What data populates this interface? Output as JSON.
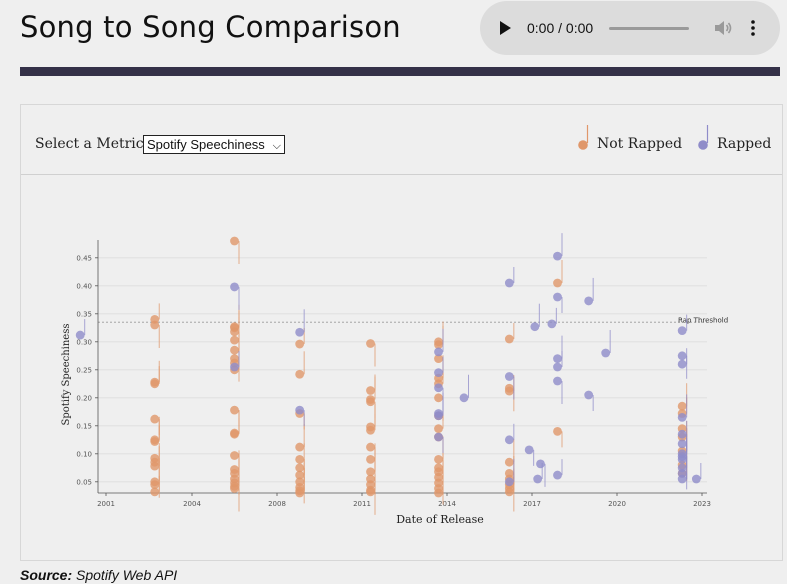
{
  "page": {
    "title": "Song to Song Comparison",
    "source_label": "Source:",
    "source_text": "Spotify Web API"
  },
  "audio_player": {
    "time": "0:00 / 0:00",
    "icons": [
      "play-icon",
      "volume-icon",
      "more-vertical-icon"
    ]
  },
  "controls": {
    "metric_label": "Select a Metric",
    "metric_selected": "Spotify Speechiness"
  },
  "legend": [
    {
      "label": "Not Rapped",
      "color": "#e0976a"
    },
    {
      "label": "Rapped",
      "color": "#8f8cc9"
    }
  ],
  "chart_data": {
    "type": "scatter",
    "xlabel": "Date of Release",
    "ylabel": "Spotify Speechiness",
    "x_ticks": [
      "2001",
      "2004",
      "2008",
      "2011",
      "2014",
      "2017",
      "2020",
      "2023"
    ],
    "y_ticks": [
      "0.05",
      "0.10",
      "0.15",
      "0.20",
      "0.25",
      "0.30",
      "0.35",
      "0.40",
      "0.45"
    ],
    "ylim": [
      0.03,
      0.47
    ],
    "grid": true,
    "threshold": {
      "label": "Rap Threshold",
      "value": 0.335
    },
    "series": [
      {
        "name": "Not Rapped",
        "color": "#e0976a",
        "points": [
          [
            2002.7,
            0.34
          ],
          [
            2002.7,
            0.33
          ],
          [
            2002.7,
            0.228
          ],
          [
            2002.7,
            0.225
          ],
          [
            2002.7,
            0.162
          ],
          [
            2002.7,
            0.125
          ],
          [
            2002.7,
            0.122
          ],
          [
            2002.7,
            0.092
          ],
          [
            2002.7,
            0.085
          ],
          [
            2002.7,
            0.078
          ],
          [
            2002.7,
            0.05
          ],
          [
            2002.7,
            0.045
          ],
          [
            2002.7,
            0.032
          ],
          [
            2006.0,
            0.48
          ],
          [
            2006.0,
            0.327
          ],
          [
            2006.0,
            0.325
          ],
          [
            2006.0,
            0.318
          ],
          [
            2006.0,
            0.303
          ],
          [
            2006.0,
            0.285
          ],
          [
            2006.0,
            0.27
          ],
          [
            2006.0,
            0.262
          ],
          [
            2006.0,
            0.25
          ],
          [
            2006.0,
            0.178
          ],
          [
            2006.0,
            0.137
          ],
          [
            2006.0,
            0.135
          ],
          [
            2006.0,
            0.097
          ],
          [
            2006.0,
            0.072
          ],
          [
            2006.0,
            0.065
          ],
          [
            2006.0,
            0.055
          ],
          [
            2006.0,
            0.048
          ],
          [
            2006.0,
            0.042
          ],
          [
            2006.0,
            0.038
          ],
          [
            2008.8,
            0.296
          ],
          [
            2008.8,
            0.242
          ],
          [
            2008.8,
            0.172
          ],
          [
            2008.8,
            0.112
          ],
          [
            2008.8,
            0.09
          ],
          [
            2008.8,
            0.075
          ],
          [
            2008.8,
            0.062
          ],
          [
            2008.8,
            0.05
          ],
          [
            2008.8,
            0.04
          ],
          [
            2008.8,
            0.034
          ],
          [
            2008.8,
            0.03
          ],
          [
            2011.3,
            0.297
          ],
          [
            2011.3,
            0.213
          ],
          [
            2011.3,
            0.197
          ],
          [
            2011.3,
            0.193
          ],
          [
            2011.3,
            0.148
          ],
          [
            2011.3,
            0.142
          ],
          [
            2011.3,
            0.112
          ],
          [
            2011.3,
            0.09
          ],
          [
            2011.3,
            0.068
          ],
          [
            2011.3,
            0.055
          ],
          [
            2011.3,
            0.045
          ],
          [
            2011.3,
            0.035
          ],
          [
            2011.3,
            0.032
          ],
          [
            2013.7,
            0.3
          ],
          [
            2013.7,
            0.295
          ],
          [
            2013.7,
            0.27
          ],
          [
            2013.7,
            0.235
          ],
          [
            2013.7,
            0.225
          ],
          [
            2013.7,
            0.2
          ],
          [
            2013.7,
            0.168
          ],
          [
            2013.7,
            0.145
          ],
          [
            2013.7,
            0.13
          ],
          [
            2013.7,
            0.09
          ],
          [
            2013.7,
            0.075
          ],
          [
            2013.7,
            0.068
          ],
          [
            2013.7,
            0.058
          ],
          [
            2013.7,
            0.048
          ],
          [
            2013.7,
            0.038
          ],
          [
            2013.7,
            0.03
          ],
          [
            2016.2,
            0.305
          ],
          [
            2016.2,
            0.217
          ],
          [
            2016.2,
            0.212
          ],
          [
            2016.2,
            0.085
          ],
          [
            2016.2,
            0.065
          ],
          [
            2016.2,
            0.055
          ],
          [
            2016.2,
            0.045
          ],
          [
            2016.2,
            0.038
          ],
          [
            2016.2,
            0.032
          ],
          [
            2017.9,
            0.405
          ],
          [
            2017.9,
            0.14
          ],
          [
            2022.3,
            0.185
          ],
          [
            2022.3,
            0.172
          ],
          [
            2022.3,
            0.145
          ],
          [
            2022.3,
            0.13
          ],
          [
            2022.3,
            0.105
          ],
          [
            2022.3,
            0.08
          ],
          [
            2022.3,
            0.065
          ]
        ]
      },
      {
        "name": "Rapped",
        "color": "#8f8cc9",
        "points": [
          [
            2000.1,
            0.312
          ],
          [
            2006.0,
            0.398
          ],
          [
            2006.0,
            0.255
          ],
          [
            2008.8,
            0.317
          ],
          [
            2008.8,
            0.178
          ],
          [
            2013.7,
            0.282
          ],
          [
            2013.7,
            0.245
          ],
          [
            2013.7,
            0.218
          ],
          [
            2013.7,
            0.172
          ],
          [
            2013.7,
            0.168
          ],
          [
            2013.7,
            0.13
          ],
          [
            2014.6,
            0.2
          ],
          [
            2016.2,
            0.405
          ],
          [
            2016.2,
            0.238
          ],
          [
            2016.2,
            0.125
          ],
          [
            2016.2,
            0.05
          ],
          [
            2016.9,
            0.107
          ],
          [
            2017.1,
            0.327
          ],
          [
            2017.2,
            0.055
          ],
          [
            2017.3,
            0.082
          ],
          [
            2017.7,
            0.332
          ],
          [
            2017.9,
            0.453
          ],
          [
            2017.9,
            0.38
          ],
          [
            2017.9,
            0.27
          ],
          [
            2017.9,
            0.255
          ],
          [
            2017.9,
            0.23
          ],
          [
            2017.9,
            0.062
          ],
          [
            2019.0,
            0.373
          ],
          [
            2019.0,
            0.205
          ],
          [
            2019.6,
            0.28
          ],
          [
            2022.3,
            0.32
          ],
          [
            2022.3,
            0.275
          ],
          [
            2022.3,
            0.26
          ],
          [
            2022.3,
            0.165
          ],
          [
            2022.3,
            0.135
          ],
          [
            2022.3,
            0.118
          ],
          [
            2022.3,
            0.1
          ],
          [
            2022.3,
            0.095
          ],
          [
            2022.3,
            0.09
          ],
          [
            2022.3,
            0.075
          ],
          [
            2022.3,
            0.065
          ],
          [
            2022.3,
            0.055
          ],
          [
            2022.8,
            0.055
          ]
        ]
      }
    ]
  }
}
